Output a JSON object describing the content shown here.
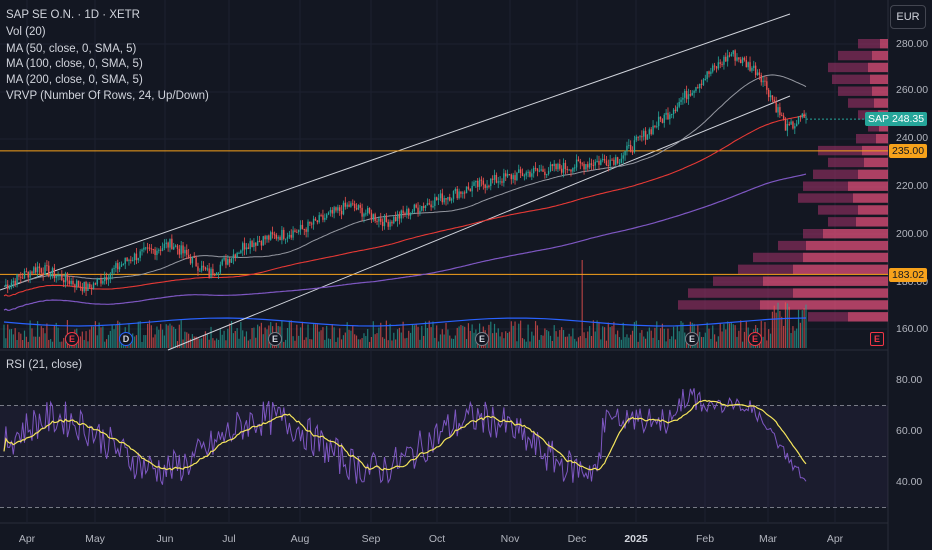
{
  "legend": {
    "symbol": "SAP SE O.N. · 1D · XETR",
    "vol": "Vol (20)",
    "ma50": "MA (50, close, 0, SMA, 5)",
    "ma100": "MA (100, close, 0, SMA, 5)",
    "ma200": "MA (200, close, 0, SMA, 5)",
    "vrvp": "VRVP (Number Of Rows, 24, Up/Down)",
    "rsi": "RSI (21, close)"
  },
  "currency": "EUR",
  "price_axis": [
    "280.00",
    "260.00",
    "240.00",
    "220.00",
    "200.00",
    "180.00",
    "160.00"
  ],
  "rsi_axis": [
    "80.00",
    "60.00",
    "40.00"
  ],
  "time_axis": [
    "Apr",
    "May",
    "Jun",
    "Jul",
    "Aug",
    "Sep",
    "Oct",
    "Nov",
    "Dec",
    "2025",
    "Feb",
    "Mar",
    "Apr"
  ],
  "price_tags": {
    "symbol_tag": "SAP",
    "last_price": "248.35",
    "level_upper": "235.00",
    "level_lower": "183.02"
  },
  "events": [
    "E",
    "D",
    "E",
    "E",
    "E",
    "E",
    "E"
  ],
  "colors": {
    "up": "#26a69a",
    "down": "#ef5350",
    "ma50": "#9598a1",
    "ma100": "#e53935",
    "ma200": "#7e57c2",
    "rsi": "#7e57c2",
    "rsi_ma": "#f5e55c",
    "level": "#f7a21b",
    "vrvp_up": "#e04f7a",
    "vrvp_down": "#a8336b"
  },
  "chart_data": {
    "type": "candlestick",
    "y_range": [
      152,
      292
    ],
    "rsi_range": [
      27,
      90
    ],
    "rsi_bands": [
      70,
      30,
      50
    ],
    "levels": [
      235.0,
      183.02
    ],
    "last_price": 248.35,
    "close_monthly": [
      {
        "m": "Apr",
        "v": 178
      },
      {
        "m": "May",
        "v": 176
      },
      {
        "m": "Jun",
        "v": 186
      },
      {
        "m": "Jul",
        "v": 193
      },
      {
        "m": "Aug",
        "v": 192
      },
      {
        "m": "Sep",
        "v": 200
      },
      {
        "m": "Oct",
        "v": 207
      },
      {
        "m": "Nov",
        "v": 218
      },
      {
        "m": "Dec",
        "v": 240
      },
      {
        "m": "2025",
        "v": 238
      },
      {
        "m": "Feb",
        "v": 270
      },
      {
        "m": "Mar",
        "v": 244
      }
    ]
  }
}
